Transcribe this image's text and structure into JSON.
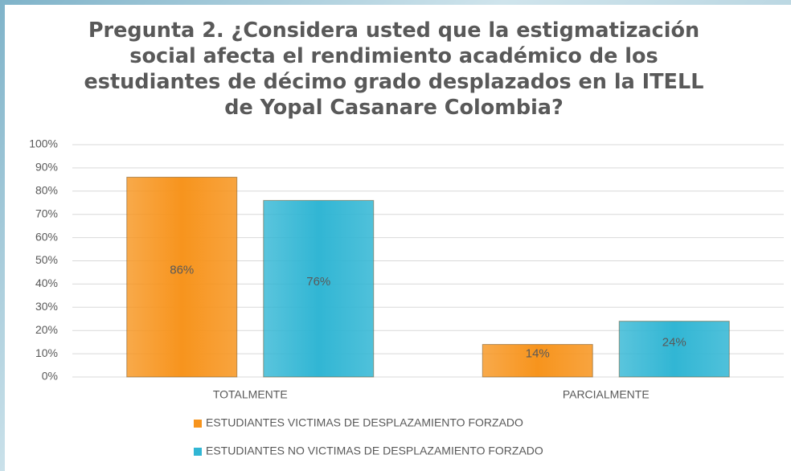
{
  "chart_data": {
    "type": "bar",
    "title": "Pregunta 2. ¿Considera usted que la estigmatización social afecta el rendimiento académico de los estudiantes de décimo grado desplazados en la ITELL de Yopal Casanare Colombia?",
    "categories": [
      "TOTALMENTE",
      "PARCIALMENTE"
    ],
    "series": [
      {
        "name": "ESTUDIANTES VICTIMAS DE DESPLAZAMIENTO FORZADO",
        "color": "#f7941d",
        "values": [
          86,
          14
        ],
        "value_labels": [
          "86%",
          "14%"
        ]
      },
      {
        "name": "ESTUDIANTES NO VICTIMAS DE DESPLAZAMIENTO FORZADO",
        "color": "#31b6d4",
        "values": [
          76,
          24
        ],
        "value_labels": [
          "76%",
          "24%"
        ]
      }
    ],
    "ylim": [
      0,
      100
    ],
    "yticks": [
      {
        "value": 0,
        "label": "0%"
      },
      {
        "value": 10,
        "label": "10%"
      },
      {
        "value": 20,
        "label": "20%"
      },
      {
        "value": 30,
        "label": "30%"
      },
      {
        "value": 40,
        "label": "40%"
      },
      {
        "value": 50,
        "label": "50%"
      },
      {
        "value": 60,
        "label": "60%"
      },
      {
        "value": 70,
        "label": "70%"
      },
      {
        "value": 80,
        "label": "80%"
      },
      {
        "value": 90,
        "label": "90%"
      },
      {
        "value": 100,
        "label": "100%"
      }
    ],
    "grid": true,
    "legend": "bottom"
  }
}
